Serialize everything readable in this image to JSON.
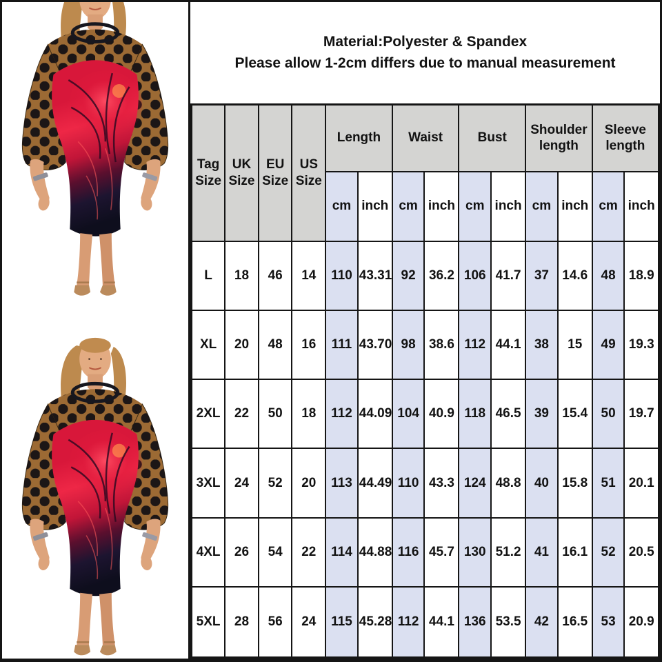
{
  "note": {
    "line1": "Material:Polyester & Spandex",
    "line2": "Please allow 1-2cm differs due to manual measurement"
  },
  "size_table": {
    "size_columns": [
      "Tag Size",
      "UK Size",
      "EU Size",
      "US Size"
    ],
    "measure_groups": [
      "Length",
      "Waist",
      "Bust",
      "Shoulder length",
      "Sleeve length"
    ],
    "units": {
      "cm": "cm",
      "inch": "inch"
    },
    "row_keys": [
      "tag",
      "uk",
      "eu",
      "us",
      "length_cm",
      "length_inch",
      "waist_cm",
      "waist_inch",
      "bust_cm",
      "bust_inch",
      "shoulder_cm",
      "shoulder_inch",
      "sleeve_cm",
      "sleeve_inch"
    ],
    "rows": [
      {
        "tag": "L",
        "uk": "18",
        "eu": "46",
        "us": "14",
        "length_cm": "110",
        "length_inch": "43.31",
        "waist_cm": "92",
        "waist_inch": "36.2",
        "bust_cm": "106",
        "bust_inch": "41.7",
        "shoulder_cm": "37",
        "shoulder_inch": "14.6",
        "sleeve_cm": "48",
        "sleeve_inch": "18.9"
      },
      {
        "tag": "XL",
        "uk": "20",
        "eu": "48",
        "us": "16",
        "length_cm": "111",
        "length_inch": "43.70",
        "waist_cm": "98",
        "waist_inch": "38.6",
        "bust_cm": "112",
        "bust_inch": "44.1",
        "shoulder_cm": "38",
        "shoulder_inch": "15",
        "sleeve_cm": "49",
        "sleeve_inch": "19.3"
      },
      {
        "tag": "2XL",
        "uk": "22",
        "eu": "50",
        "us": "18",
        "length_cm": "112",
        "length_inch": "44.09",
        "waist_cm": "104",
        "waist_inch": "40.9",
        "bust_cm": "118",
        "bust_inch": "46.5",
        "shoulder_cm": "39",
        "shoulder_inch": "15.4",
        "sleeve_cm": "50",
        "sleeve_inch": "19.7"
      },
      {
        "tag": "3XL",
        "uk": "24",
        "eu": "52",
        "us": "20",
        "length_cm": "113",
        "length_inch": "44.49",
        "waist_cm": "110",
        "waist_inch": "43.3",
        "bust_cm": "124",
        "bust_inch": "48.8",
        "shoulder_cm": "40",
        "shoulder_inch": "15.8",
        "sleeve_cm": "51",
        "sleeve_inch": "20.1"
      },
      {
        "tag": "4XL",
        "uk": "26",
        "eu": "54",
        "us": "22",
        "length_cm": "114",
        "length_inch": "44.88",
        "waist_cm": "116",
        "waist_inch": "45.7",
        "bust_cm": "130",
        "bust_inch": "51.2",
        "shoulder_cm": "41",
        "shoulder_inch": "16.1",
        "sleeve_cm": "52",
        "sleeve_inch": "20.5"
      },
      {
        "tag": "5XL",
        "uk": "28",
        "eu": "56",
        "us": "24",
        "length_cm": "115",
        "length_inch": "45.28",
        "waist_cm": "112",
        "waist_inch": "44.1",
        "bust_cm": "136",
        "bust_inch": "53.5",
        "shoulder_cm": "42",
        "shoulder_inch": "16.5",
        "sleeve_cm": "53",
        "sleeve_inch": "20.9"
      }
    ]
  },
  "colors": {
    "table-border": "#151515",
    "header-bg": "#d4d4d2",
    "cm-col-bg": "#dbe0f1",
    "text": "#121212",
    "dress-red": "#e31937",
    "dress-navy": "#10101f",
    "mesh-tan": "#9c6a34"
  }
}
